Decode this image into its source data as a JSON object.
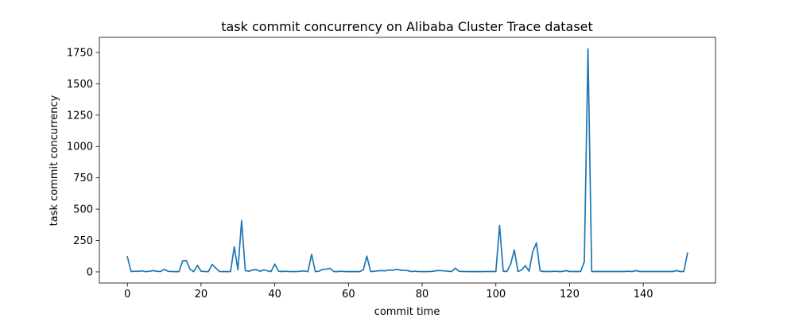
{
  "chart_data": {
    "type": "line",
    "title": "task commit concurrency on Alibaba Cluster Trace dataset",
    "xlabel": "commit time",
    "ylabel": "task commit concurrency",
    "xlim": [
      -7.6,
      159.6
    ],
    "ylim": [
      -89,
      1870
    ],
    "xticks": [
      0,
      20,
      40,
      60,
      80,
      100,
      120,
      140
    ],
    "yticks": [
      0,
      250,
      500,
      750,
      1000,
      1250,
      1500,
      1750
    ],
    "grid": false,
    "color": "#1f77b4",
    "series": [
      {
        "x": [
          0,
          1,
          2,
          3,
          4,
          5,
          6,
          7,
          8,
          9,
          10,
          11,
          12,
          13,
          14,
          15,
          16,
          17,
          18,
          19,
          20,
          21,
          22,
          23,
          24,
          25,
          26,
          27,
          28,
          29,
          30,
          31,
          32,
          33,
          34,
          35,
          36,
          37,
          38,
          39,
          40,
          41,
          42,
          43,
          44,
          45,
          46,
          47,
          48,
          49,
          50,
          51,
          52,
          53,
          54,
          55,
          56,
          57,
          58,
          59,
          60,
          61,
          62,
          63,
          64,
          65,
          66,
          67,
          68,
          69,
          70,
          71,
          72,
          73,
          74,
          75,
          76,
          77,
          78,
          79,
          80,
          81,
          82,
          83,
          84,
          85,
          86,
          87,
          88,
          89,
          90,
          91,
          92,
          93,
          94,
          95,
          96,
          97,
          98,
          99,
          100,
          101,
          102,
          103,
          104,
          105,
          106,
          107,
          108,
          109,
          110,
          111,
          112,
          113,
          114,
          115,
          116,
          117,
          118,
          119,
          120,
          121,
          122,
          123,
          124,
          125,
          126,
          127,
          128,
          129,
          130,
          131,
          132,
          133,
          134,
          135,
          136,
          137,
          138,
          139,
          140,
          141,
          142,
          143,
          144,
          145,
          146,
          147,
          148,
          149,
          150,
          151,
          152
        ],
        "y": [
          120,
          3,
          5,
          4,
          8,
          2,
          5,
          10,
          5,
          3,
          20,
          5,
          3,
          2,
          2,
          88,
          90,
          20,
          2,
          52,
          5,
          3,
          2,
          60,
          30,
          3,
          2,
          2,
          2,
          200,
          15,
          410,
          10,
          5,
          15,
          18,
          5,
          15,
          8,
          3,
          62,
          5,
          3,
          5,
          3,
          2,
          3,
          5,
          8,
          2,
          140,
          2,
          5,
          20,
          22,
          28,
          3,
          2,
          5,
          3,
          2,
          3,
          2,
          2,
          15,
          125,
          2,
          5,
          8,
          10,
          8,
          15,
          12,
          20,
          15,
          12,
          10,
          3,
          5,
          3,
          2,
          2,
          3,
          5,
          10,
          10,
          8,
          5,
          3,
          30,
          5,
          3,
          3,
          2,
          3,
          2,
          2,
          3,
          3,
          3,
          2,
          370,
          5,
          3,
          60,
          175,
          3,
          15,
          50,
          5,
          160,
          230,
          8,
          3,
          3,
          3,
          5,
          3,
          3,
          10,
          3,
          3,
          3,
          3,
          80,
          1780,
          3,
          3,
          3,
          3,
          3,
          3,
          3,
          3,
          3,
          3,
          5,
          3,
          10,
          3,
          3,
          3,
          3,
          3,
          3,
          3,
          3,
          3,
          3,
          10,
          3,
          3,
          150
        ]
      }
    ]
  }
}
